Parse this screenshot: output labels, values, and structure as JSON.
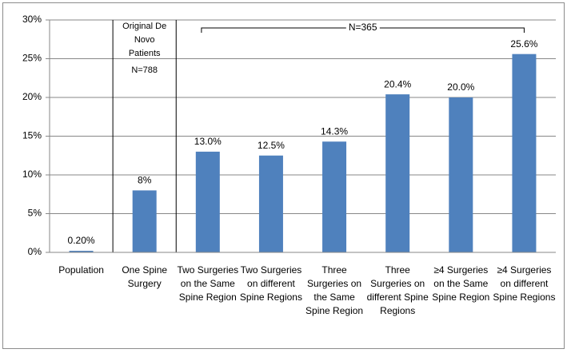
{
  "chart_data": {
    "type": "bar",
    "categories": [
      "Population",
      "One Spine Surgery",
      "Two Surgeries on the Same Spine Region",
      "Two Surgeries on different Spine Regions",
      "Three Surgeries on the Same Spine Region",
      "Three Surgeries on different Spine Regions",
      "≥4 Surgeries on the Same Spine Region",
      "≥4 Surgeries on different Spine Regions"
    ],
    "values": [
      0.2,
      8,
      13.0,
      12.5,
      14.3,
      20.4,
      20.0,
      25.6
    ],
    "value_labels": [
      "0.20%",
      "8%",
      "13.0%",
      "12.5%",
      "14.3%",
      "20.4%",
      "20.0%",
      "25.6%"
    ],
    "color": "#4f81bd",
    "ylim": [
      0,
      30
    ],
    "yticks": [
      {
        "value": 0,
        "label": "0%"
      },
      {
        "value": 5,
        "label": "5%"
      },
      {
        "value": 10,
        "label": "10%"
      },
      {
        "value": 15,
        "label": "15%"
      },
      {
        "value": 20,
        "label": "20%"
      },
      {
        "value": 25,
        "label": "25%"
      },
      {
        "value": 30,
        "label": "30%"
      }
    ],
    "grid": true,
    "annotations": {
      "original": "Original De Novo Patients",
      "n_original": "N=788",
      "n_subset": "N=365"
    }
  }
}
